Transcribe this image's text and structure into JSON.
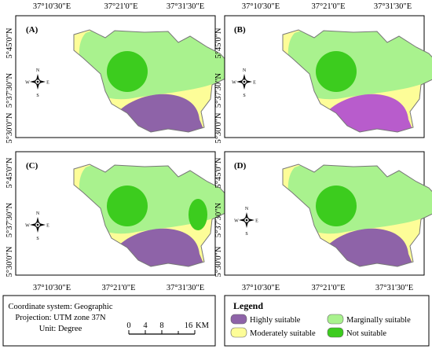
{
  "top_lon_labels": [
    "37°10'30\"E",
    "37°21'0\"E",
    "37°31'30\"E"
  ],
  "bottom_lon_labels": [
    "37°10'30\"E",
    "37°21'0\"E",
    "37°31'30\"E"
  ],
  "lat_labels": [
    "5°45'0\"N",
    "5°37'30\"N",
    "5°30'0\"N"
  ],
  "panels": [
    {
      "label": "(A)",
      "highly_suitable_color": "#8e63a8",
      "eastern_not_suitable_patch": false
    },
    {
      "label": "(B)",
      "highly_suitable_color": "#b85ccc",
      "eastern_not_suitable_patch": false
    },
    {
      "label": "(C)",
      "highly_suitable_color": "#8e63a8",
      "eastern_not_suitable_patch": true
    },
    {
      "label": "(D)",
      "highly_suitable_color": "#8e63a8",
      "eastern_not_suitable_patch": false
    }
  ],
  "compass": {
    "n": "N",
    "s": "S",
    "e": "E",
    "w": "W"
  },
  "footer": {
    "coordinate_system": "Coordinate system: Geographic",
    "projection": "Projection: UTM zone 37N",
    "unit": "Unit: Degree"
  },
  "scalebar": {
    "ticks": [
      "0",
      "4",
      "8",
      "16"
    ],
    "unit": "KM"
  },
  "legend": {
    "title": "Legend",
    "items": [
      {
        "label": "Highly suitable",
        "color": "#8e63a8"
      },
      {
        "label": "Marginally suitable",
        "color": "#a9f28e"
      },
      {
        "label": "Moderately suitable",
        "color": "#fdfd98"
      },
      {
        "label": "Not suitable",
        "color": "#3ccc1e"
      }
    ]
  },
  "colors": {
    "highly_suitable": "#8e63a8",
    "highly_suitable_panel_b": "#b85ccc",
    "moderately_suitable": "#fdfd98",
    "marginally_suitable": "#a9f28e",
    "not_suitable": "#3ccc1e",
    "boundary": "#777777"
  }
}
